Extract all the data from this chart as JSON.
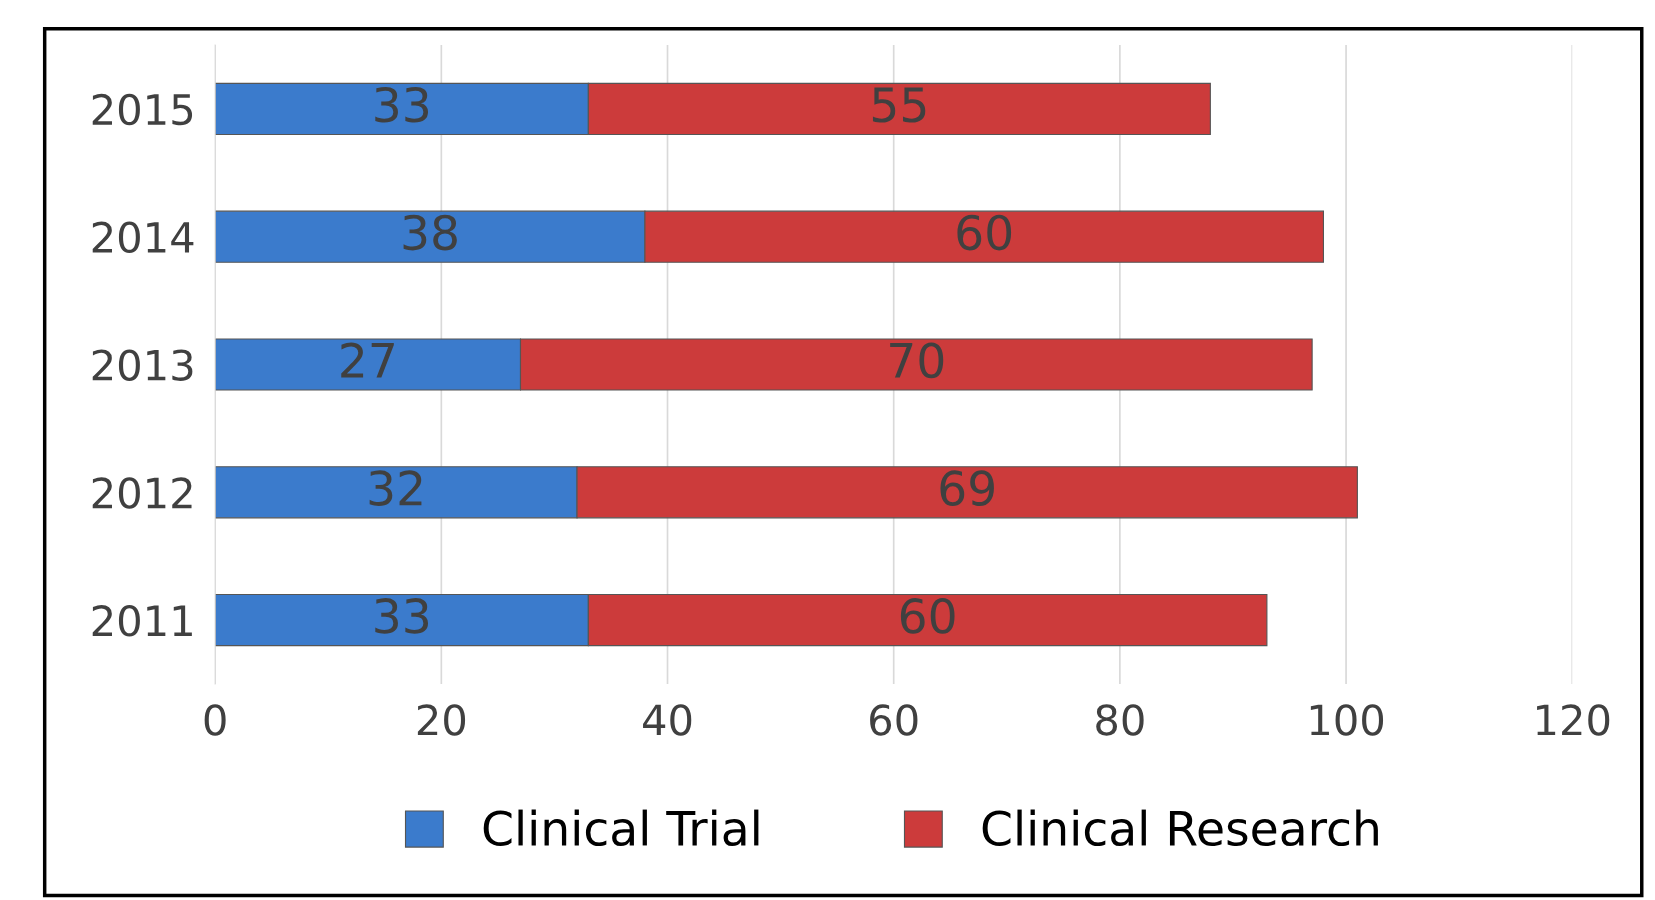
{
  "chart_data": {
    "type": "bar",
    "orientation": "horizontal",
    "stacked": true,
    "categories": [
      "2015",
      "2014",
      "2013",
      "2012",
      "2011"
    ],
    "series": [
      {
        "name": "Clinical Trial",
        "color": "#3b7bcc",
        "values": [
          33,
          38,
          27,
          32,
          33
        ]
      },
      {
        "name": "Clinical Research",
        "color": "#cc3b3b",
        "values": [
          55,
          60,
          70,
          69,
          60
        ]
      }
    ],
    "xlim": [
      0,
      120
    ],
    "xticks": [
      0,
      20,
      40,
      60,
      80,
      100,
      120
    ],
    "grid": "x",
    "legend": "bottom",
    "data_labels": true
  }
}
